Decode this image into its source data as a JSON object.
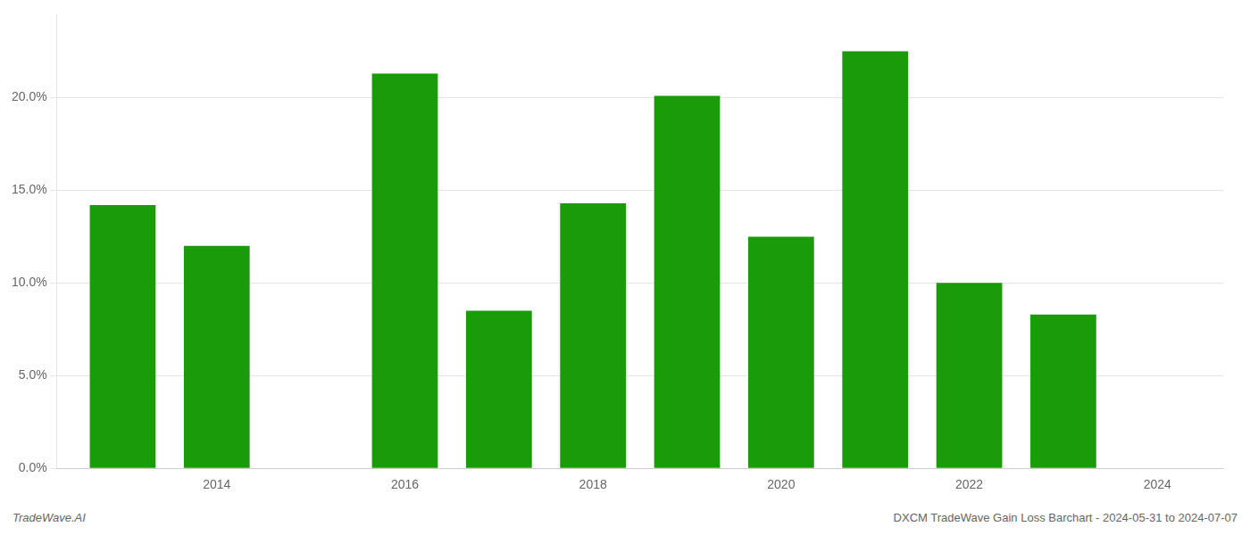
{
  "chart_data": {
    "type": "bar",
    "x": [
      2013,
      2014,
      2015,
      2016,
      2017,
      2018,
      2019,
      2020,
      2021,
      2022,
      2023
    ],
    "values": [
      0.142,
      0.12,
      0.0,
      0.213,
      0.085,
      0.143,
      0.201,
      0.125,
      0.225,
      0.1,
      0.083
    ],
    "color": "#1a9c0a",
    "xlim": [
      2012.3,
      2024.7
    ],
    "xticks": [
      2014,
      2016,
      2018,
      2020,
      2022,
      2024
    ],
    "ylim": [
      0,
      0.245
    ],
    "yticks": [
      {
        "value": 0.0,
        "label": "0.0%"
      },
      {
        "value": 0.05,
        "label": "5.0%"
      },
      {
        "value": 0.1,
        "label": "10.0%"
      },
      {
        "value": 0.15,
        "label": "15.0%"
      },
      {
        "value": 0.2,
        "label": "20.0%"
      }
    ],
    "grid": true,
    "annotations": [
      "TradeWave.AI",
      "DXCM TradeWave Gain Loss Barchart - 2024-05-31 to 2024-07-07"
    ]
  }
}
